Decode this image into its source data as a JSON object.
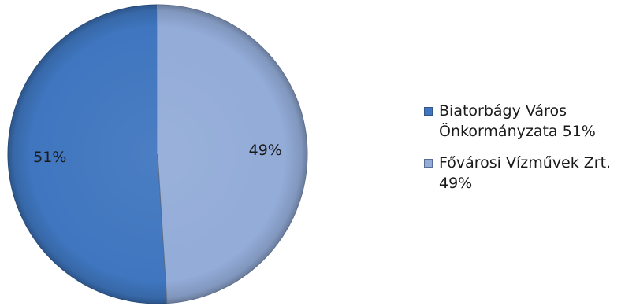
{
  "chart_data": {
    "type": "pie",
    "title": "",
    "categories": [
      "Biatorbágy Város Önkormányzata",
      "Fővárosi Vízművek Zrt."
    ],
    "values": [
      51,
      49
    ],
    "data_labels": [
      "51%",
      "49%"
    ],
    "legend_labels": [
      "Biatorbágy Város\nÖnkormányzata 51%",
      "Fővárosi Vízművek Zrt.\n49%"
    ],
    "colors": [
      "#3f76bf",
      "#93acd8"
    ],
    "start_angle_deg": 0,
    "direction": "counterclockwise",
    "legend_position": "right",
    "style": "3d-bevel"
  }
}
